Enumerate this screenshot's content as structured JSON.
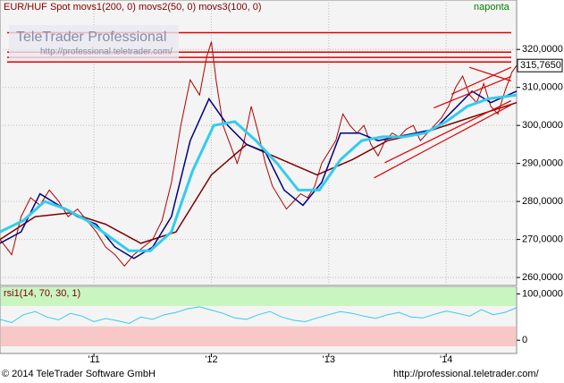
{
  "chart_data": [
    {
      "type": "line",
      "title": "EUR/HUF Spot movs1(200, 0) movs2(50, 0) movs3(100, 0)",
      "subtitle": "naponta",
      "watermark": "TeleTrader Professional",
      "watermark_url": "http://professional.teletrader.com/",
      "xlim": [
        2010.2,
        2014.6
      ],
      "ylim": [
        257.9,
        333
      ],
      "yticks": [
        {
          "value": 260,
          "label": "260,0000"
        },
        {
          "value": 270,
          "label": "270,0000"
        },
        {
          "value": 280,
          "label": "280,0000"
        },
        {
          "value": 290,
          "label": "290,0000"
        },
        {
          "value": 300,
          "label": "300,0000"
        },
        {
          "value": 310,
          "label": "310,0000"
        },
        {
          "value": 320,
          "label": "320,0000"
        }
      ],
      "grid": true,
      "last_value": {
        "value": 315.765,
        "label": "315,7650"
      },
      "levels": [
        324.4,
        319.3,
        317.9,
        316.7
      ],
      "level_color": "#e00000",
      "trendlines": [
        {
          "x": [
            2013.386,
            2014.553
          ],
          "y": [
            286.2,
            305.4
          ]
        },
        {
          "x": [
            2013.477,
            2014.553
          ],
          "y": [
            290.2,
            306.5
          ]
        },
        {
          "x": [
            2013.894,
            2014.553
          ],
          "y": [
            304.6,
            312.9
          ]
        },
        {
          "x": [
            2014.197,
            2014.553
          ],
          "y": [
            315.3,
            311.7
          ]
        },
        {
          "x": [
            2014.045,
            2014.553
          ],
          "y": [
            308.2,
            315.3
          ]
        }
      ],
      "series": [
        {
          "color": "#b00000",
          "width": 1,
          "x": [
            2010.2,
            2010.3,
            2010.38,
            2010.46,
            2010.54,
            2010.62,
            2010.7,
            2010.78,
            2010.86,
            2010.94,
            2011.02,
            2011.1,
            2011.18,
            2011.26,
            2011.34,
            2011.42,
            2011.5,
            2011.58,
            2011.66,
            2011.74,
            2011.82,
            2011.9,
            2011.96,
            2012.0,
            2012.04,
            2012.1,
            2012.16,
            2012.22,
            2012.28,
            2012.34,
            2012.4,
            2012.46,
            2012.52,
            2012.58,
            2012.64,
            2012.7,
            2012.76,
            2012.82,
            2012.88,
            2012.94,
            2013.0,
            2013.06,
            2013.12,
            2013.18,
            2013.24,
            2013.3,
            2013.36,
            2013.42,
            2013.48,
            2013.54,
            2013.6,
            2013.66,
            2013.72,
            2013.78,
            2013.84,
            2013.9,
            2013.96,
            2014.02,
            2014.08,
            2014.14,
            2014.2,
            2014.26,
            2014.32,
            2014.38,
            2014.44,
            2014.5,
            2014.56,
            2014.6
          ],
          "values": [
            270,
            266,
            276,
            281,
            279,
            283,
            280,
            276,
            278,
            275,
            272,
            268,
            266,
            263,
            266,
            268,
            270,
            275,
            285,
            300,
            312,
            308,
            318,
            322,
            312,
            300,
            295,
            290,
            296,
            305,
            298,
            290,
            284,
            281,
            278,
            280,
            282,
            281,
            284,
            290,
            293,
            296,
            303,
            300,
            298,
            300,
            295,
            292,
            296,
            298,
            297,
            299,
            300,
            296,
            298,
            300,
            302,
            305,
            310,
            313,
            308,
            306,
            311,
            305,
            303,
            309,
            314,
            315.765
          ]
        },
        {
          "color": "#800000",
          "width": 1.5,
          "x": [
            2010.2,
            2010.5,
            2010.8,
            2011.1,
            2011.4,
            2011.7,
            2012.0,
            2012.3,
            2012.6,
            2012.9,
            2013.2,
            2013.5,
            2013.8,
            2014.1,
            2014.4,
            2014.6
          ],
          "values": [
            270,
            276,
            277,
            274,
            269,
            272,
            287,
            295,
            291,
            287,
            291,
            296,
            298,
            301,
            304,
            306
          ]
        },
        {
          "color": "#000080",
          "width": 1.5,
          "x": [
            2010.2,
            2010.38,
            2010.54,
            2010.7,
            2010.86,
            2011.02,
            2011.18,
            2011.34,
            2011.5,
            2011.66,
            2011.82,
            2011.98,
            2012.14,
            2012.3,
            2012.46,
            2012.62,
            2012.78,
            2012.94,
            2013.1,
            2013.26,
            2013.42,
            2013.58,
            2013.74,
            2013.9,
            2014.06,
            2014.22,
            2014.38,
            2014.6
          ],
          "values": [
            269,
            272,
            282,
            279,
            276,
            274,
            268,
            265,
            268,
            276,
            296,
            307,
            300,
            295,
            293,
            283,
            279,
            285,
            298,
            298,
            296,
            297,
            298,
            299,
            304,
            309,
            306,
            309
          ]
        },
        {
          "color": "#33ccee",
          "width": 3,
          "x": [
            2010.2,
            2010.4,
            2010.58,
            2010.76,
            2010.94,
            2011.12,
            2011.3,
            2011.48,
            2011.66,
            2011.84,
            2012.02,
            2012.2,
            2012.38,
            2012.56,
            2012.74,
            2012.92,
            2013.1,
            2013.28,
            2013.46,
            2013.64,
            2013.82,
            2014.0,
            2014.18,
            2014.36,
            2014.6
          ],
          "values": [
            272,
            275,
            280,
            278,
            275,
            271,
            267,
            267,
            272,
            288,
            300,
            301,
            296,
            290,
            283,
            283,
            291,
            296,
            297,
            297,
            298,
            301,
            305,
            307,
            308
          ]
        }
      ]
    },
    {
      "type": "line",
      "title": "rsi1(14, 70, 30, 1)",
      "xlim": [
        2010.2,
        2014.6
      ],
      "ylim": [
        -28.6,
        114.3
      ],
      "yticks": [
        {
          "value": 100,
          "label": "100,0000"
        },
        0
      ],
      "bands": [
        70,
        30
      ],
      "xticks": [
        {
          "value": 2011,
          "label": "'11"
        },
        {
          "value": 2012,
          "label": "'12"
        },
        {
          "value": 2013,
          "label": "'13"
        },
        {
          "value": 2014,
          "label": "'14"
        }
      ],
      "series": [
        {
          "color": "#33ccee",
          "width": 1,
          "x": [
            2010.2,
            2010.3,
            2010.4,
            2010.5,
            2010.6,
            2010.7,
            2010.8,
            2010.9,
            2011.0,
            2011.1,
            2011.2,
            2011.3,
            2011.4,
            2011.5,
            2011.6,
            2011.7,
            2011.8,
            2011.9,
            2012.0,
            2012.1,
            2012.2,
            2012.3,
            2012.4,
            2012.5,
            2012.6,
            2012.7,
            2012.8,
            2012.9,
            2013.0,
            2013.1,
            2013.2,
            2013.3,
            2013.4,
            2013.5,
            2013.6,
            2013.7,
            2013.8,
            2013.9,
            2014.0,
            2014.1,
            2014.2,
            2014.3,
            2014.4,
            2014.5,
            2014.6
          ],
          "values": [
            45,
            38,
            55,
            62,
            50,
            44,
            58,
            52,
            40,
            47,
            42,
            36,
            50,
            45,
            55,
            60,
            68,
            72,
            65,
            58,
            48,
            45,
            55,
            62,
            50,
            43,
            40,
            48,
            55,
            62,
            58,
            52,
            47,
            55,
            60,
            50,
            48,
            56,
            63,
            58,
            52,
            66,
            55,
            60,
            70
          ]
        }
      ]
    }
  ],
  "footer": {
    "copyright": "© 2014 TeleTrader Software GmbH",
    "url": "http://professional.teletrader.com/"
  }
}
